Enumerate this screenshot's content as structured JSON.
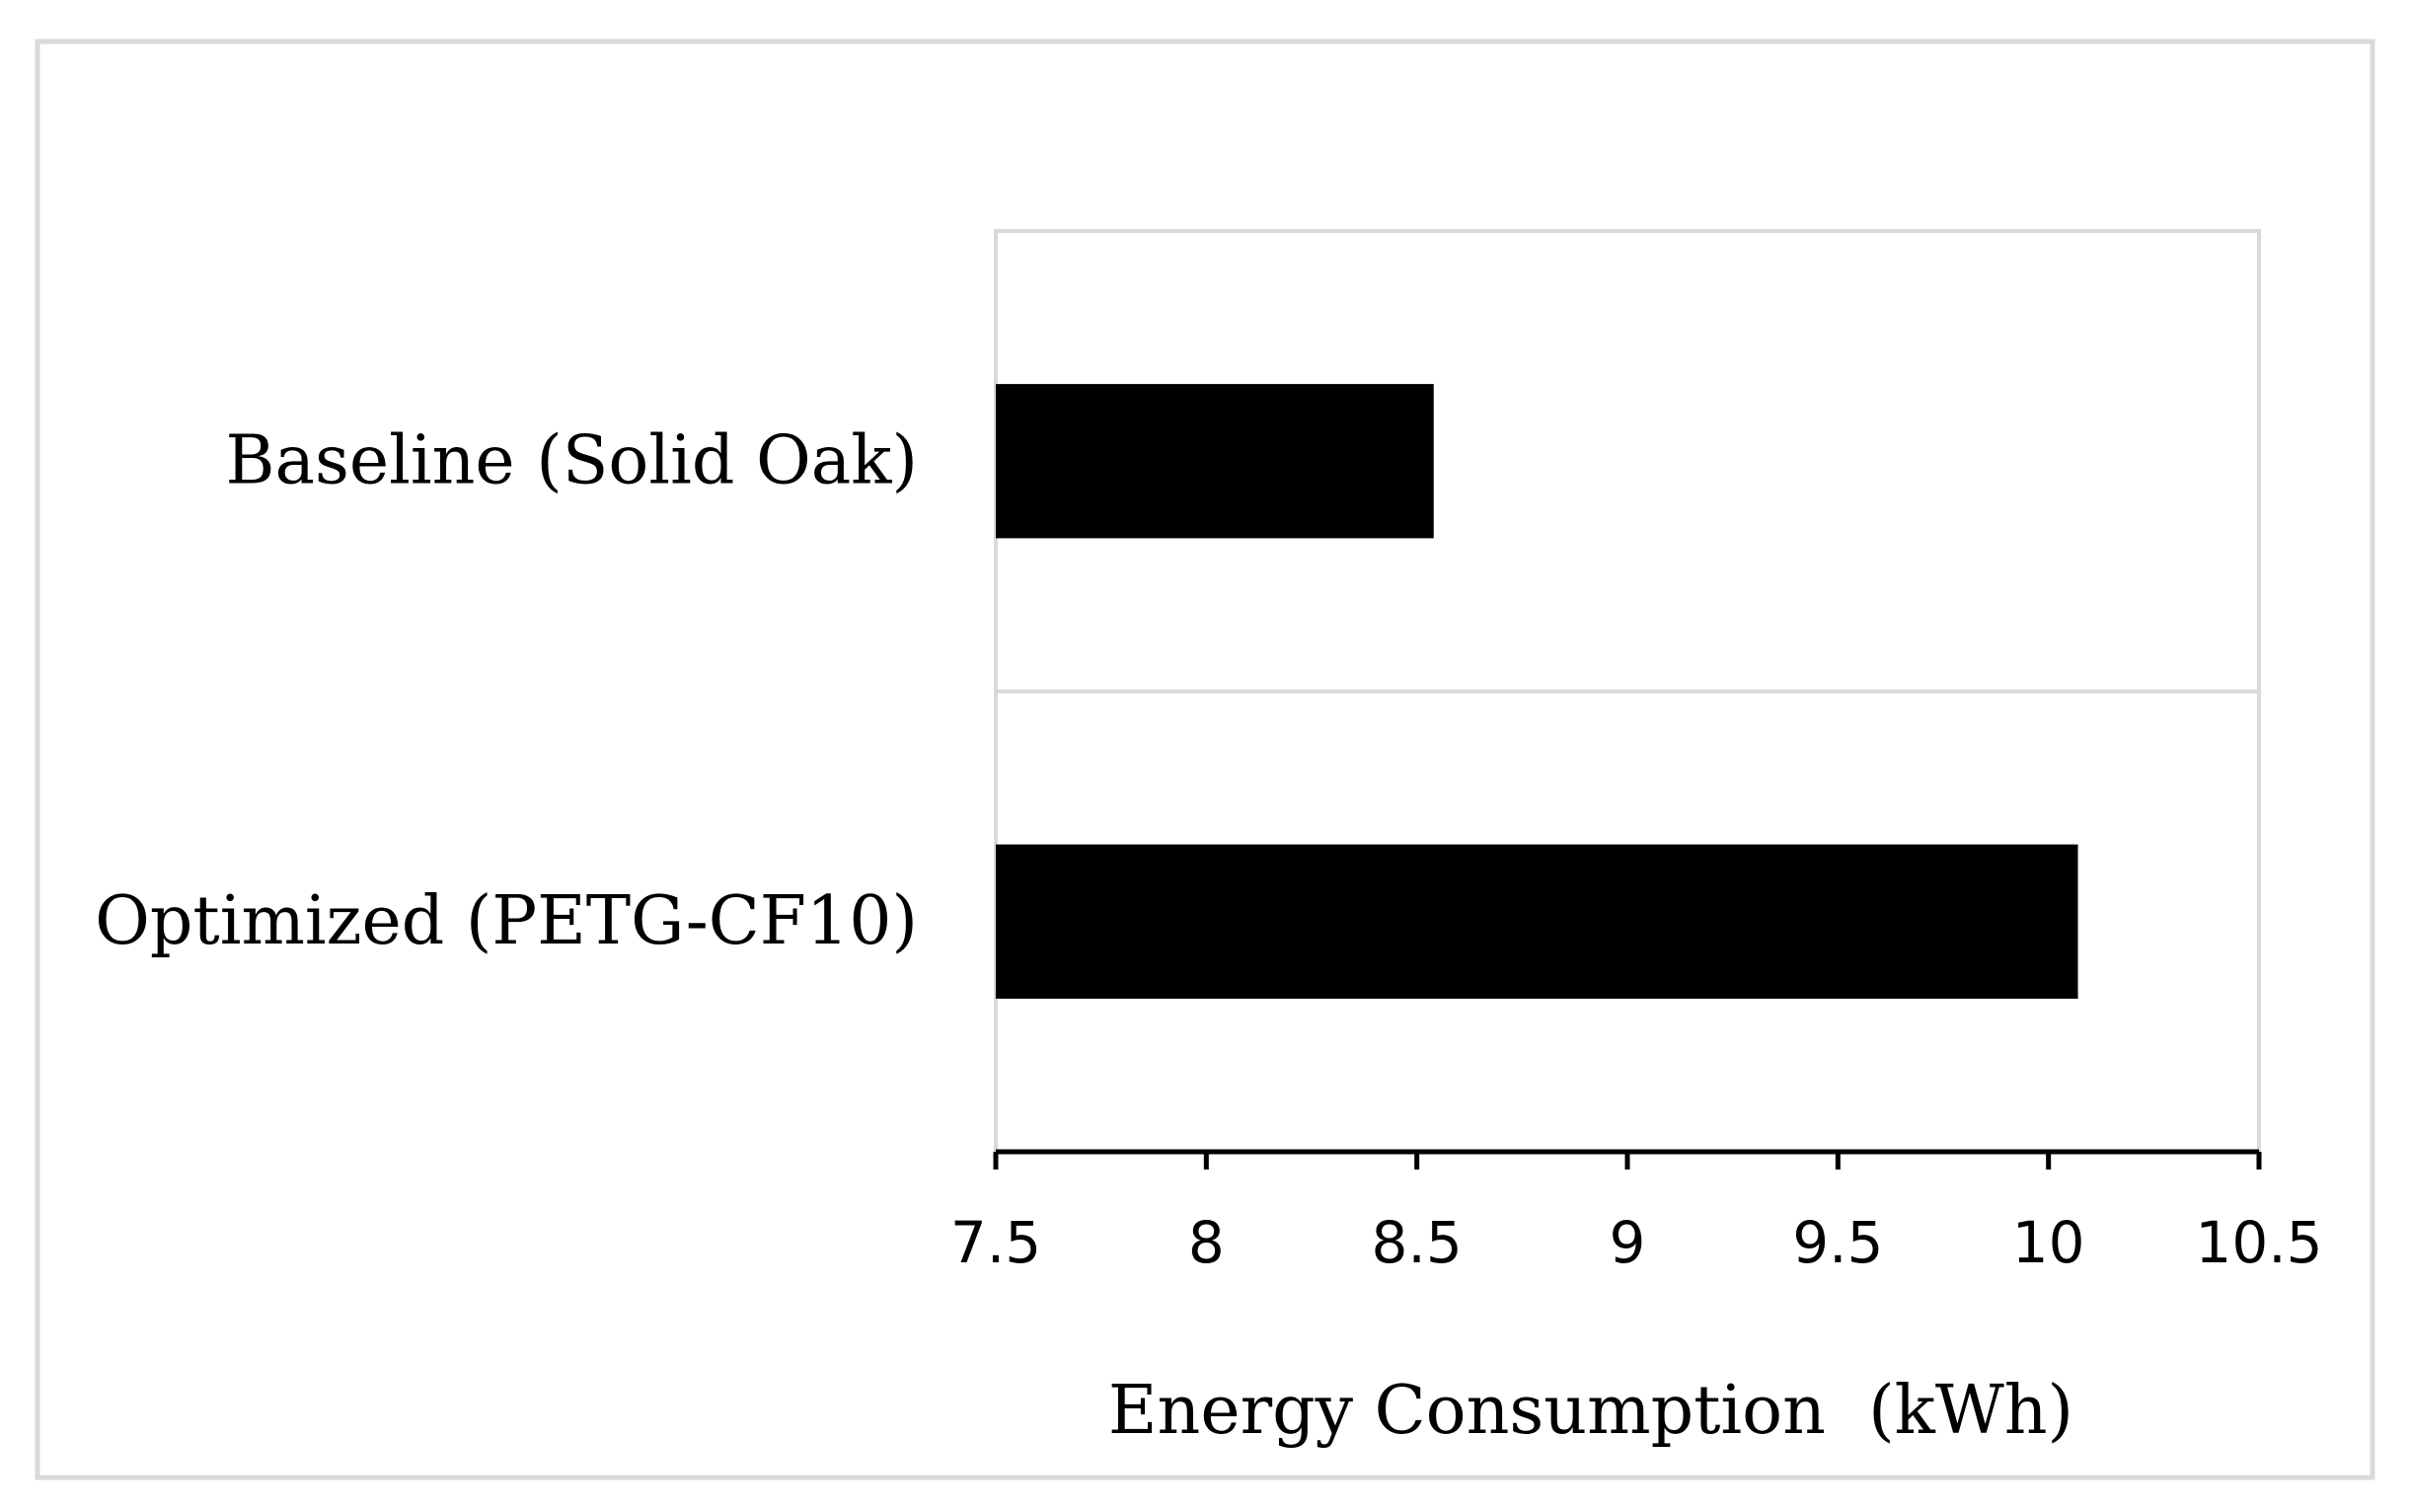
{
  "chart_data": {
    "type": "bar",
    "orientation": "horizontal",
    "categories": [
      "Baseline (Solid Oak)",
      "Optimized (PETG-CF10)"
    ],
    "values": [
      8.54,
      10.07
    ],
    "title": "",
    "xlabel": "Energy Consumption  (kWh)",
    "ylabel": "",
    "xlim": [
      7.5,
      10.5
    ],
    "xticks": [
      7.5,
      8,
      8.5,
      9,
      9.5,
      10,
      10.5
    ],
    "xtick_labels": [
      "7.5",
      "8",
      "8.5",
      "9",
      "9.5",
      "10",
      "10.5"
    ],
    "grid": "horizontal category separators",
    "legend": "none",
    "bar_color": "#000000",
    "frame_color": "#d9d9d9"
  }
}
